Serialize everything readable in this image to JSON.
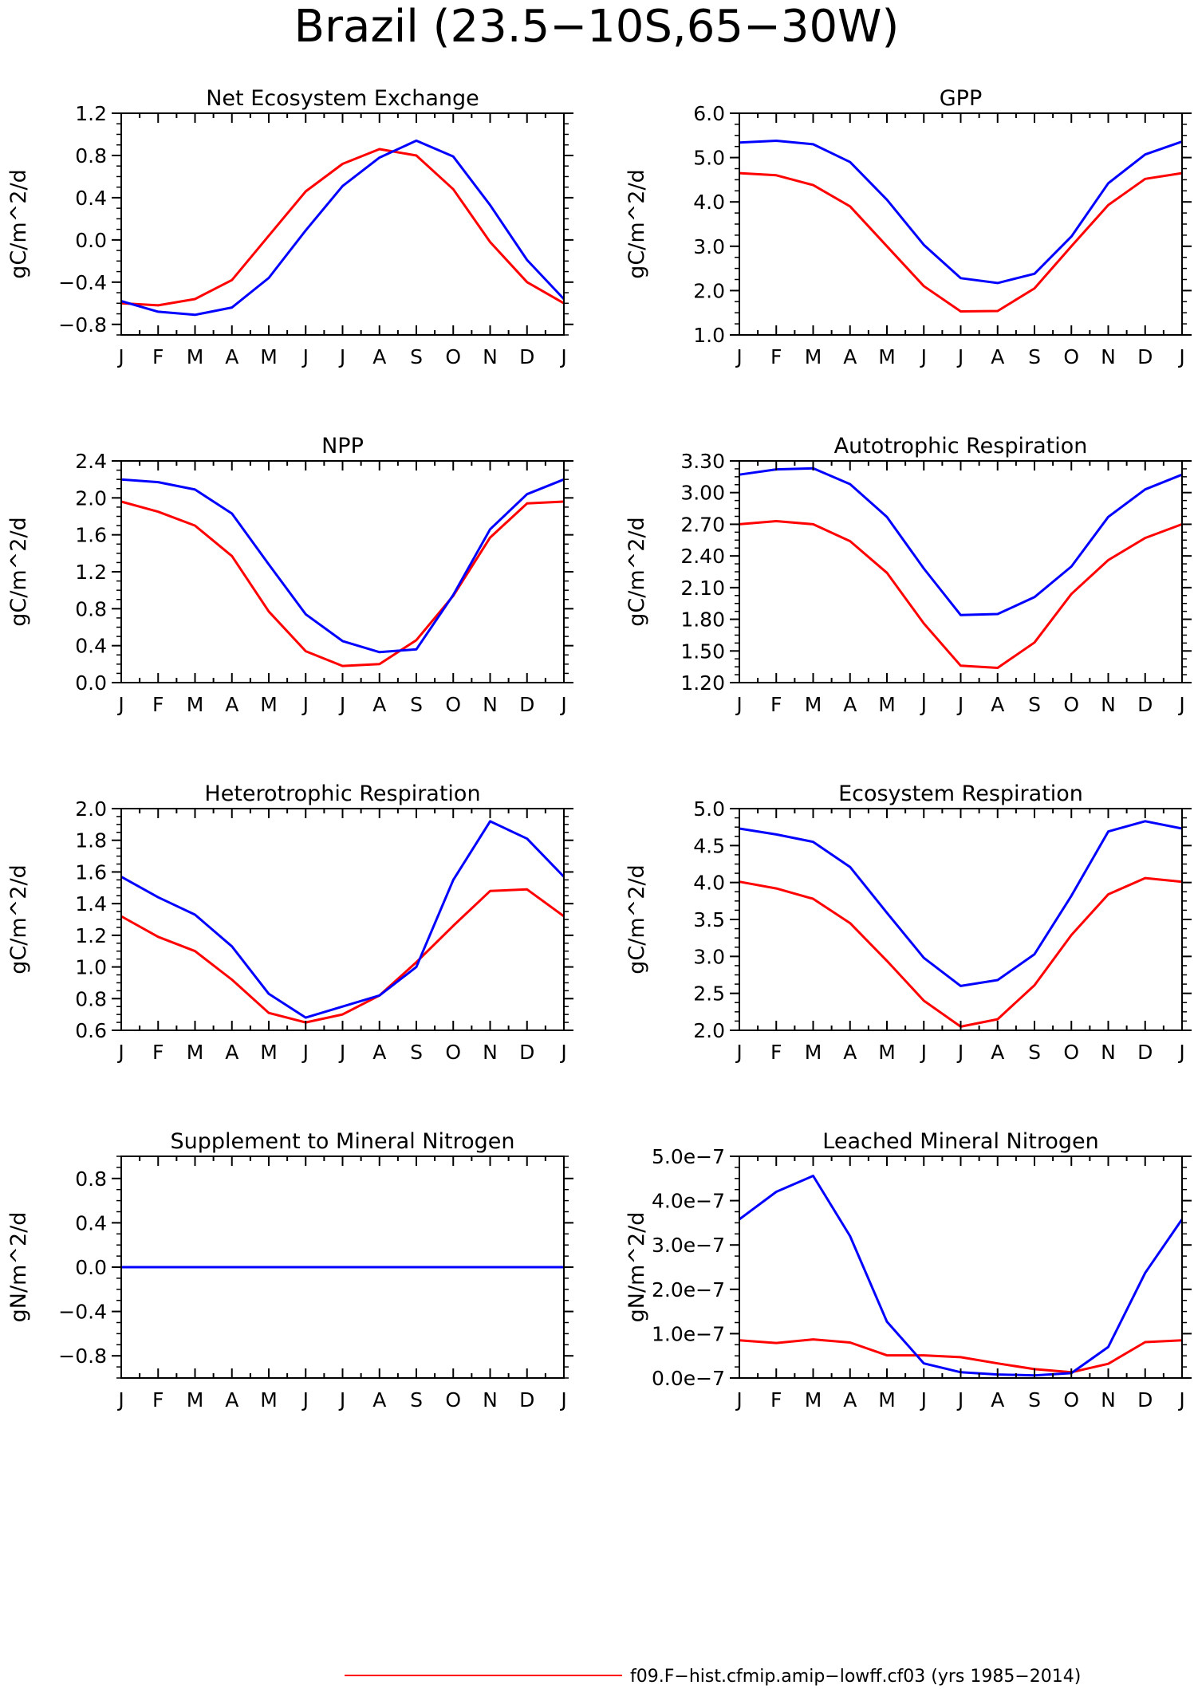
{
  "title": "Brazil (23.5−10S,65−30W)",
  "colors": {
    "red": "#ff0000",
    "blue": "#0000ff",
    "axis": "#000000"
  },
  "chart_data": [
    {
      "type": "line",
      "title": "Net Ecosystem Exchange",
      "ylabel": "gC/m^2/d",
      "categories": [
        "J",
        "F",
        "M",
        "A",
        "M",
        "J",
        "J",
        "A",
        "S",
        "O",
        "N",
        "D",
        "J"
      ],
      "ylim": [
        -0.9,
        1.2
      ],
      "yticks": [
        -0.8,
        -0.4,
        0.0,
        0.4,
        0.8,
        1.2
      ],
      "ytick_labels": [
        "−0.8",
        "−0.4",
        "0.0",
        "0.4",
        "0.8",
        "1.2"
      ],
      "series": [
        {
          "color": "red",
          "values": [
            -0.6,
            -0.62,
            -0.56,
            -0.38,
            0.04,
            0.46,
            0.72,
            0.86,
            0.8,
            0.48,
            -0.02,
            -0.4,
            -0.6
          ]
        },
        {
          "color": "blue",
          "values": [
            -0.58,
            -0.68,
            -0.71,
            -0.64,
            -0.36,
            0.09,
            0.51,
            0.78,
            0.94,
            0.79,
            0.33,
            -0.19,
            -0.56
          ]
        }
      ]
    },
    {
      "type": "line",
      "title": "GPP",
      "ylabel": "gC/m^2/d",
      "categories": [
        "J",
        "F",
        "M",
        "A",
        "M",
        "J",
        "J",
        "A",
        "S",
        "O",
        "N",
        "D",
        "J"
      ],
      "ylim": [
        1.0,
        6.0
      ],
      "yticks": [
        1.0,
        2.0,
        3.0,
        4.0,
        5.0,
        6.0
      ],
      "ytick_labels": [
        "1.0",
        "2.0",
        "3.0",
        "4.0",
        "5.0",
        "6.0"
      ],
      "series": [
        {
          "color": "red",
          "values": [
            4.65,
            4.6,
            4.38,
            3.9,
            3.0,
            2.1,
            1.53,
            1.54,
            2.05,
            3.0,
            3.93,
            4.52,
            4.65
          ]
        },
        {
          "color": "blue",
          "values": [
            5.34,
            5.38,
            5.3,
            4.9,
            4.05,
            3.03,
            2.28,
            2.17,
            2.38,
            3.22,
            4.42,
            5.07,
            5.36
          ]
        }
      ]
    },
    {
      "type": "line",
      "title": "NPP",
      "ylabel": "gC/m^2/d",
      "categories": [
        "J",
        "F",
        "M",
        "A",
        "M",
        "J",
        "J",
        "A",
        "S",
        "O",
        "N",
        "D",
        "J"
      ],
      "ylim": [
        0.0,
        2.4
      ],
      "yticks": [
        0.0,
        0.4,
        0.8,
        1.2,
        1.6,
        2.0,
        2.4
      ],
      "ytick_labels": [
        "0.0",
        "0.4",
        "0.8",
        "1.2",
        "1.6",
        "2.0",
        "2.4"
      ],
      "series": [
        {
          "color": "red",
          "values": [
            1.96,
            1.85,
            1.7,
            1.37,
            0.77,
            0.34,
            0.18,
            0.2,
            0.46,
            0.94,
            1.57,
            1.94,
            1.96
          ]
        },
        {
          "color": "blue",
          "values": [
            2.2,
            2.17,
            2.09,
            1.83,
            1.28,
            0.74,
            0.45,
            0.33,
            0.36,
            0.95,
            1.66,
            2.04,
            2.2
          ]
        }
      ]
    },
    {
      "type": "line",
      "title": "Autotrophic Respiration",
      "ylabel": "gC/m^2/d",
      "categories": [
        "J",
        "F",
        "M",
        "A",
        "M",
        "J",
        "J",
        "A",
        "S",
        "O",
        "N",
        "D",
        "J"
      ],
      "ylim": [
        1.2,
        3.3
      ],
      "yticks": [
        1.2,
        1.5,
        1.8,
        2.1,
        2.4,
        2.7,
        3.0,
        3.3
      ],
      "ytick_labels": [
        "1.20",
        "1.50",
        "1.80",
        "2.10",
        "2.40",
        "2.70",
        "3.00",
        "3.30"
      ],
      "series": [
        {
          "color": "red",
          "values": [
            2.7,
            2.73,
            2.7,
            2.54,
            2.24,
            1.76,
            1.36,
            1.34,
            1.58,
            2.04,
            2.36,
            2.57,
            2.7
          ]
        },
        {
          "color": "blue",
          "values": [
            3.17,
            3.22,
            3.23,
            3.08,
            2.77,
            2.28,
            1.84,
            1.85,
            2.01,
            2.3,
            2.77,
            3.03,
            3.17
          ]
        }
      ]
    },
    {
      "type": "line",
      "title": "Heterotrophic Respiration",
      "ylabel": "gC/m^2/d",
      "categories": [
        "J",
        "F",
        "M",
        "A",
        "M",
        "J",
        "J",
        "A",
        "S",
        "O",
        "N",
        "D",
        "J"
      ],
      "ylim": [
        0.6,
        2.0
      ],
      "yticks": [
        0.6,
        0.8,
        1.0,
        1.2,
        1.4,
        1.6,
        1.8,
        2.0
      ],
      "ytick_labels": [
        "0.6",
        "0.8",
        "1.0",
        "1.2",
        "1.4",
        "1.6",
        "1.8",
        "2.0"
      ],
      "series": [
        {
          "color": "red",
          "values": [
            1.32,
            1.19,
            1.1,
            0.92,
            0.71,
            0.65,
            0.7,
            0.82,
            1.03,
            1.26,
            1.48,
            1.49,
            1.32
          ]
        },
        {
          "color": "blue",
          "values": [
            1.57,
            1.44,
            1.33,
            1.13,
            0.83,
            0.68,
            0.75,
            0.82,
            1.0,
            1.55,
            1.92,
            1.81,
            1.57
          ]
        }
      ]
    },
    {
      "type": "line",
      "title": "Ecosystem Respiration",
      "ylabel": "gC/m^2/d",
      "categories": [
        "J",
        "F",
        "M",
        "A",
        "M",
        "J",
        "J",
        "A",
        "S",
        "O",
        "N",
        "D",
        "J"
      ],
      "ylim": [
        2.0,
        5.0
      ],
      "yticks": [
        2.0,
        2.5,
        3.0,
        3.5,
        4.0,
        4.5,
        5.0
      ],
      "ytick_labels": [
        "2.0",
        "2.5",
        "3.0",
        "3.5",
        "4.0",
        "4.5",
        "5.0"
      ],
      "series": [
        {
          "color": "red",
          "values": [
            4.01,
            3.92,
            3.78,
            3.45,
            2.94,
            2.4,
            2.05,
            2.15,
            2.61,
            3.29,
            3.84,
            4.06,
            4.01
          ]
        },
        {
          "color": "blue",
          "values": [
            4.73,
            4.65,
            4.55,
            4.21,
            3.59,
            2.98,
            2.6,
            2.68,
            3.03,
            3.82,
            4.69,
            4.83,
            4.73
          ]
        }
      ]
    },
    {
      "type": "line",
      "title": "Supplement to Mineral Nitrogen",
      "ylabel": "gN/m^2/d",
      "categories": [
        "J",
        "F",
        "M",
        "A",
        "M",
        "J",
        "J",
        "A",
        "S",
        "O",
        "N",
        "D",
        "J"
      ],
      "ylim": [
        -1.0,
        1.0
      ],
      "yticks": [
        -0.8,
        -0.4,
        0.0,
        0.4,
        0.8
      ],
      "ytick_labels": [
        "−0.8",
        "−0.4",
        "0.0",
        "0.4",
        "0.8"
      ],
      "series": [
        {
          "color": "red",
          "values": [
            0,
            0,
            0,
            0,
            0,
            0,
            0,
            0,
            0,
            0,
            0,
            0,
            0
          ]
        },
        {
          "color": "blue",
          "values": [
            0,
            0,
            0,
            0,
            0,
            0,
            0,
            0,
            0,
            0,
            0,
            0,
            0
          ]
        }
      ]
    },
    {
      "type": "line",
      "title": "Leached Mineral Nitrogen",
      "ylabel": "gN/m^2/d",
      "categories": [
        "J",
        "F",
        "M",
        "A",
        "M",
        "J",
        "J",
        "A",
        "S",
        "O",
        "N",
        "D",
        "J"
      ],
      "ylim": [
        0.0,
        5e-07
      ],
      "yticks": [
        0.0,
        1e-07,
        2e-07,
        3e-07,
        4e-07,
        5e-07
      ],
      "ytick_labels": [
        "0.0e−7",
        "1.0e−7",
        "2.0e−7",
        "3.0e−7",
        "4.0e−7",
        "5.0e−7"
      ],
      "series": [
        {
          "color": "red",
          "values": [
            8.5e-08,
            7.9e-08,
            8.7e-08,
            8e-08,
            5.1e-08,
            5.1e-08,
            4.7e-08,
            3.3e-08,
            2e-08,
            1.3e-08,
            3.2e-08,
            8.1e-08,
            8.5e-08
          ]
        },
        {
          "color": "blue",
          "values": [
            3.58e-07,
            4.2e-07,
            4.56e-07,
            3.2e-07,
            1.27e-07,
            3.3e-08,
            1.3e-08,
            8e-09,
            6e-09,
            1.1e-08,
            7e-08,
            2.37e-07,
            3.58e-07
          ]
        }
      ]
    }
  ],
  "legend": [
    {
      "color": "red",
      "label": "f09.F−hist.cfmip.amip−lowff.cf03 (yrs 1985−2014)"
    }
  ]
}
